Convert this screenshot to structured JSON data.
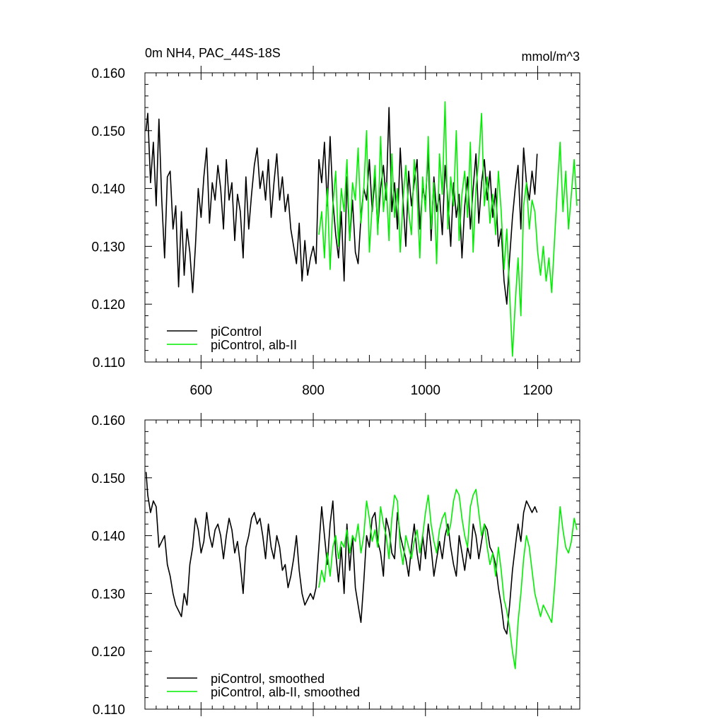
{
  "header": {
    "title": "0m NH4, PAC_44S-18S",
    "units": "mmol/m^3"
  },
  "colors": {
    "control": "#000000",
    "albII": "#00ee00",
    "axis": "#000000"
  },
  "chart_data": [
    {
      "type": "line",
      "xlim": [
        500,
        1275
      ],
      "ylim": [
        0.11,
        0.16
      ],
      "yticks": [
        "0.110",
        "0.120",
        "0.130",
        "0.140",
        "0.150",
        "0.160"
      ],
      "xticks": [
        "600",
        "800",
        "1000",
        "1200"
      ],
      "legend_position": "lower-left",
      "series": [
        {
          "name": "piControl",
          "color": "#000000",
          "x": [
            502,
            505,
            510,
            515,
            520,
            525,
            530,
            535,
            540,
            545,
            550,
            555,
            560,
            565,
            570,
            575,
            580,
            585,
            590,
            595,
            600,
            605,
            610,
            615,
            620,
            625,
            630,
            635,
            640,
            645,
            650,
            655,
            660,
            665,
            670,
            675,
            680,
            685,
            690,
            695,
            700,
            705,
            710,
            715,
            720,
            725,
            730,
            735,
            740,
            745,
            750,
            755,
            760,
            765,
            770,
            775,
            780,
            785,
            790,
            795,
            800,
            805,
            810,
            815,
            820,
            825,
            830,
            835,
            840,
            845,
            850,
            855,
            860,
            865,
            870,
            875,
            880,
            885,
            890,
            895,
            900,
            905,
            910,
            915,
            920,
            925,
            930,
            935,
            940,
            945,
            950,
            955,
            960,
            965,
            970,
            975,
            980,
            985,
            990,
            995,
            1000,
            1005,
            1010,
            1015,
            1020,
            1025,
            1030,
            1035,
            1040,
            1045,
            1050,
            1055,
            1060,
            1065,
            1070,
            1075,
            1080,
            1085,
            1090,
            1095,
            1100,
            1105,
            1110,
            1115,
            1120,
            1125,
            1130,
            1135,
            1140,
            1145,
            1150,
            1155,
            1160,
            1165,
            1170,
            1175,
            1180,
            1185,
            1190,
            1195,
            1199
          ],
          "y": [
            0.15,
            0.153,
            0.141,
            0.148,
            0.137,
            0.152,
            0.138,
            0.128,
            0.142,
            0.143,
            0.133,
            0.137,
            0.123,
            0.136,
            0.125,
            0.133,
            0.129,
            0.122,
            0.13,
            0.14,
            0.135,
            0.142,
            0.147,
            0.134,
            0.141,
            0.138,
            0.144,
            0.14,
            0.133,
            0.145,
            0.138,
            0.141,
            0.131,
            0.139,
            0.136,
            0.128,
            0.142,
            0.133,
            0.139,
            0.144,
            0.147,
            0.14,
            0.143,
            0.138,
            0.145,
            0.135,
            0.141,
            0.146,
            0.138,
            0.142,
            0.136,
            0.139,
            0.133,
            0.13,
            0.127,
            0.134,
            0.124,
            0.131,
            0.125,
            0.128,
            0.13,
            0.127,
            0.145,
            0.141,
            0.148,
            0.137,
            0.149,
            0.138,
            0.132,
            0.128,
            0.136,
            0.124,
            0.142,
            0.131,
            0.138,
            0.129,
            0.127,
            0.135,
            0.14,
            0.138,
            0.145,
            0.136,
            0.142,
            0.133,
            0.14,
            0.144,
            0.138,
            0.154,
            0.136,
            0.141,
            0.133,
            0.147,
            0.138,
            0.13,
            0.143,
            0.137,
            0.141,
            0.145,
            0.133,
            0.14,
            0.138,
            0.146,
            0.131,
            0.142,
            0.136,
            0.139,
            0.132,
            0.144,
            0.138,
            0.13,
            0.141,
            0.135,
            0.139,
            0.128,
            0.137,
            0.142,
            0.133,
            0.14,
            0.146,
            0.134,
            0.141,
            0.145,
            0.138,
            0.143,
            0.135,
            0.14,
            0.13,
            0.133,
            0.124,
            0.12,
            0.128,
            0.135,
            0.14,
            0.144,
            0.133,
            0.147,
            0.141,
            0.138,
            0.143,
            0.139,
            0.146
          ],
          "label": "piControl"
        },
        {
          "name": "piControl, alb-II",
          "color": "#00ee00",
          "x": [
            810,
            815,
            820,
            825,
            830,
            835,
            840,
            845,
            850,
            855,
            860,
            865,
            870,
            875,
            880,
            885,
            890,
            895,
            900,
            905,
            910,
            915,
            920,
            925,
            930,
            935,
            940,
            945,
            950,
            955,
            960,
            965,
            970,
            975,
            980,
            985,
            990,
            995,
            1000,
            1005,
            1010,
            1015,
            1020,
            1025,
            1030,
            1035,
            1040,
            1045,
            1050,
            1055,
            1060,
            1065,
            1070,
            1075,
            1080,
            1085,
            1090,
            1095,
            1100,
            1105,
            1110,
            1115,
            1120,
            1125,
            1130,
            1135,
            1140,
            1145,
            1150,
            1155,
            1160,
            1165,
            1170,
            1175,
            1180,
            1185,
            1190,
            1195,
            1200,
            1205,
            1210,
            1215,
            1220,
            1225,
            1230,
            1235,
            1240,
            1245,
            1250,
            1255,
            1260,
            1265,
            1270
          ],
          "y": [
            0.132,
            0.136,
            0.128,
            0.14,
            0.126,
            0.137,
            0.143,
            0.13,
            0.14,
            0.136,
            0.145,
            0.131,
            0.141,
            0.138,
            0.147,
            0.134,
            0.14,
            0.15,
            0.129,
            0.137,
            0.144,
            0.132,
            0.149,
            0.136,
            0.141,
            0.131,
            0.146,
            0.135,
            0.14,
            0.129,
            0.138,
            0.144,
            0.136,
            0.132,
            0.145,
            0.139,
            0.128,
            0.142,
            0.136,
            0.149,
            0.133,
            0.141,
            0.127,
            0.146,
            0.139,
            0.155,
            0.133,
            0.142,
            0.137,
            0.15,
            0.131,
            0.139,
            0.143,
            0.135,
            0.148,
            0.129,
            0.14,
            0.145,
            0.153,
            0.137,
            0.142,
            0.134,
            0.139,
            0.132,
            0.143,
            0.136,
            0.126,
            0.133,
            0.122,
            0.111,
            0.12,
            0.128,
            0.118,
            0.137,
            0.141,
            0.133,
            0.138,
            0.136,
            0.129,
            0.125,
            0.13,
            0.124,
            0.128,
            0.122,
            0.131,
            0.14,
            0.148,
            0.136,
            0.143,
            0.133,
            0.139,
            0.145,
            0.137
          ],
          "label": "piControl, alb-II"
        }
      ]
    },
    {
      "type": "line",
      "xlim": [
        500,
        1275
      ],
      "ylim": [
        0.11,
        0.16
      ],
      "yticks": [
        "0.110",
        "0.120",
        "0.130",
        "0.140",
        "0.150",
        "0.160"
      ],
      "xticks": [
        "",
        "",
        "",
        ""
      ],
      "legend_position": "lower-left",
      "series": [
        {
          "name": "piControl, smoothed",
          "color": "#000000",
          "x": [
            502,
            505,
            510,
            515,
            520,
            525,
            530,
            535,
            540,
            545,
            550,
            555,
            560,
            565,
            570,
            575,
            580,
            585,
            590,
            595,
            600,
            605,
            610,
            615,
            620,
            625,
            630,
            635,
            640,
            645,
            650,
            655,
            660,
            665,
            670,
            675,
            680,
            685,
            690,
            695,
            700,
            705,
            710,
            715,
            720,
            725,
            730,
            735,
            740,
            745,
            750,
            755,
            760,
            765,
            770,
            775,
            780,
            785,
            790,
            795,
            800,
            805,
            810,
            815,
            820,
            825,
            830,
            835,
            840,
            845,
            850,
            855,
            860,
            865,
            870,
            875,
            880,
            885,
            890,
            895,
            900,
            905,
            910,
            915,
            920,
            925,
            930,
            935,
            940,
            945,
            950,
            955,
            960,
            965,
            970,
            975,
            980,
            985,
            990,
            995,
            1000,
            1005,
            1010,
            1015,
            1020,
            1025,
            1030,
            1035,
            1040,
            1045,
            1050,
            1055,
            1060,
            1065,
            1070,
            1075,
            1080,
            1085,
            1090,
            1095,
            1100,
            1105,
            1110,
            1115,
            1120,
            1125,
            1130,
            1135,
            1140,
            1145,
            1150,
            1155,
            1160,
            1165,
            1170,
            1175,
            1180,
            1185,
            1190,
            1195,
            1199
          ],
          "y": [
            0.151,
            0.147,
            0.144,
            0.146,
            0.145,
            0.138,
            0.139,
            0.14,
            0.135,
            0.133,
            0.13,
            0.128,
            0.127,
            0.126,
            0.13,
            0.128,
            0.135,
            0.138,
            0.143,
            0.141,
            0.137,
            0.139,
            0.144,
            0.14,
            0.138,
            0.141,
            0.142,
            0.14,
            0.136,
            0.14,
            0.143,
            0.141,
            0.137,
            0.139,
            0.135,
            0.13,
            0.138,
            0.14,
            0.143,
            0.144,
            0.142,
            0.143,
            0.14,
            0.136,
            0.142,
            0.138,
            0.136,
            0.14,
            0.138,
            0.134,
            0.135,
            0.131,
            0.133,
            0.136,
            0.14,
            0.134,
            0.13,
            0.128,
            0.129,
            0.13,
            0.129,
            0.131,
            0.138,
            0.145,
            0.14,
            0.135,
            0.142,
            0.146,
            0.137,
            0.132,
            0.138,
            0.13,
            0.142,
            0.134,
            0.14,
            0.131,
            0.128,
            0.125,
            0.132,
            0.14,
            0.138,
            0.143,
            0.144,
            0.139,
            0.137,
            0.133,
            0.143,
            0.141,
            0.137,
            0.136,
            0.144,
            0.14,
            0.138,
            0.136,
            0.133,
            0.138,
            0.142,
            0.137,
            0.134,
            0.14,
            0.136,
            0.142,
            0.138,
            0.133,
            0.136,
            0.139,
            0.136,
            0.14,
            0.142,
            0.138,
            0.135,
            0.133,
            0.14,
            0.137,
            0.134,
            0.138,
            0.136,
            0.142,
            0.14,
            0.136,
            0.139,
            0.142,
            0.141,
            0.138,
            0.137,
            0.135,
            0.131,
            0.128,
            0.124,
            0.123,
            0.128,
            0.134,
            0.138,
            0.142,
            0.139,
            0.144,
            0.146,
            0.145,
            0.144,
            0.145,
            0.144
          ],
          "label": "piControl, smoothed"
        },
        {
          "name": "piControl, alb-II, smoothed",
          "color": "#00ee00",
          "x": [
            810,
            815,
            820,
            825,
            830,
            835,
            840,
            845,
            850,
            855,
            860,
            865,
            870,
            875,
            880,
            885,
            890,
            895,
            900,
            905,
            910,
            915,
            920,
            925,
            930,
            935,
            940,
            945,
            950,
            955,
            960,
            965,
            970,
            975,
            980,
            985,
            990,
            995,
            1000,
            1005,
            1010,
            1015,
            1020,
            1025,
            1030,
            1035,
            1040,
            1045,
            1050,
            1055,
            1060,
            1065,
            1070,
            1075,
            1080,
            1085,
            1090,
            1095,
            1100,
            1105,
            1110,
            1115,
            1120,
            1125,
            1130,
            1135,
            1140,
            1145,
            1150,
            1155,
            1160,
            1165,
            1170,
            1175,
            1180,
            1185,
            1190,
            1195,
            1200,
            1205,
            1210,
            1215,
            1220,
            1225,
            1230,
            1235,
            1240,
            1245,
            1250,
            1255,
            1260,
            1265,
            1270
          ],
          "y": [
            0.131,
            0.134,
            0.132,
            0.137,
            0.133,
            0.138,
            0.14,
            0.136,
            0.139,
            0.138,
            0.141,
            0.137,
            0.14,
            0.139,
            0.142,
            0.137,
            0.14,
            0.146,
            0.143,
            0.139,
            0.141,
            0.138,
            0.145,
            0.142,
            0.14,
            0.136,
            0.143,
            0.147,
            0.146,
            0.138,
            0.135,
            0.14,
            0.138,
            0.136,
            0.139,
            0.141,
            0.137,
            0.14,
            0.144,
            0.147,
            0.142,
            0.139,
            0.137,
            0.141,
            0.143,
            0.144,
            0.14,
            0.142,
            0.146,
            0.148,
            0.147,
            0.143,
            0.14,
            0.138,
            0.145,
            0.147,
            0.148,
            0.144,
            0.14,
            0.142,
            0.138,
            0.135,
            0.137,
            0.133,
            0.138,
            0.134,
            0.129,
            0.127,
            0.124,
            0.12,
            0.117,
            0.125,
            0.13,
            0.136,
            0.14,
            0.138,
            0.134,
            0.13,
            0.128,
            0.126,
            0.128,
            0.127,
            0.126,
            0.125,
            0.131,
            0.138,
            0.145,
            0.141,
            0.138,
            0.137,
            0.139,
            0.143,
            0.141
          ],
          "label": "piControl, alb-II, smoothed"
        }
      ]
    }
  ]
}
